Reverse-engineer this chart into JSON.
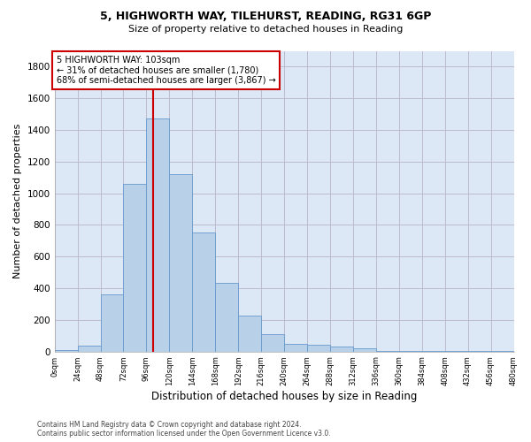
{
  "title_line1": "5, HIGHWORTH WAY, TILEHURST, READING, RG31 6GP",
  "title_line2": "Size of property relative to detached houses in Reading",
  "xlabel": "Distribution of detached houses by size in Reading",
  "ylabel": "Number of detached properties",
  "footnote": "Contains HM Land Registry data © Crown copyright and database right 2024.\nContains public sector information licensed under the Open Government Licence v3.0.",
  "bin_edges": [
    0,
    24,
    48,
    72,
    96,
    120,
    144,
    168,
    192,
    216,
    240,
    264,
    288,
    312,
    336,
    360,
    384,
    408,
    432,
    456,
    480
  ],
  "bar_heights": [
    10,
    35,
    360,
    1060,
    1470,
    1120,
    750,
    435,
    225,
    110,
    50,
    45,
    30,
    20,
    5,
    5,
    5,
    5,
    2,
    2
  ],
  "bar_color": "#b8d0e8",
  "bar_edgecolor": "#6699cc",
  "property_size": 103,
  "vline_color": "#cc0000",
  "annotation_text": "5 HIGHWORTH WAY: 103sqm\n← 31% of detached houses are smaller (1,780)\n68% of semi-detached houses are larger (3,867) →",
  "annotation_box_color": "#ffffff",
  "annotation_box_edgecolor": "#cc0000",
  "ylim": [
    0,
    1900
  ],
  "yticks": [
    0,
    200,
    400,
    600,
    800,
    1000,
    1200,
    1400,
    1600,
    1800
  ],
  "background_color": "#ffffff",
  "axes_facecolor": "#dce8f5",
  "grid_color": "#bbbbcc",
  "tick_labels": [
    "0sqm",
    "24sqm",
    "48sqm",
    "72sqm",
    "96sqm",
    "120sqm",
    "144sqm",
    "168sqm",
    "192sqm",
    "216sqm",
    "240sqm",
    "264sqm",
    "288sqm",
    "312sqm",
    "336sqm",
    "360sqm",
    "384sqm",
    "408sqm",
    "432sqm",
    "456sqm",
    "480sqm"
  ]
}
